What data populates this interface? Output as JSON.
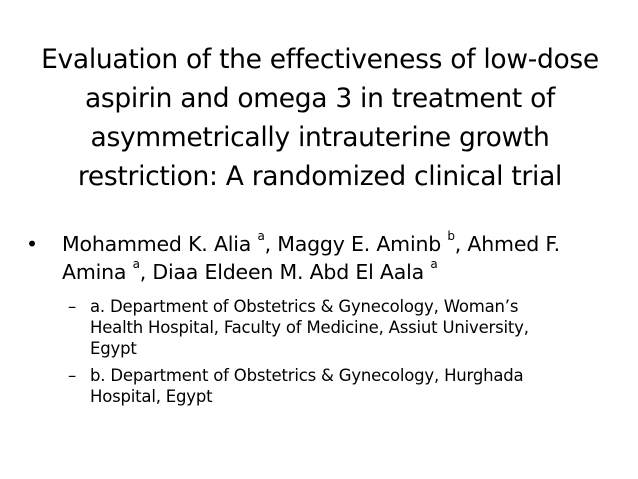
{
  "slide": {
    "title_lines": [
      "Evaluation of the effectiveness of low-dose",
      "aspirin and omega 3 in treatment of",
      "asymmetrically intrauterine growth",
      "restriction: A randomized clinical trial"
    ],
    "bullet_marker": "•",
    "sub_marker": "–",
    "authors": {
      "a1_name": "Mohammed K. Alia",
      "a1_sup": "a",
      "a2_name": ", Maggy E. Aminb",
      "a2_sup": "b",
      "a3_name": ", Ahmed F.",
      "a3_cont": "Amina",
      "a3_sup": "a",
      "a4_name": ", Diaa Eldeen M. Abd El Aala",
      "a4_sup": "a"
    },
    "affiliations": [
      {
        "lines": [
          "a. Department of Obstetrics & Gynecology, Woman’s",
          "Health Hospital, Faculty of Medicine, Assiut University,",
          "Egypt"
        ]
      },
      {
        "lines": [
          "b. Department of Obstetrics & Gynecology, Hurghada",
          "Hospital, Egypt"
        ]
      }
    ]
  }
}
